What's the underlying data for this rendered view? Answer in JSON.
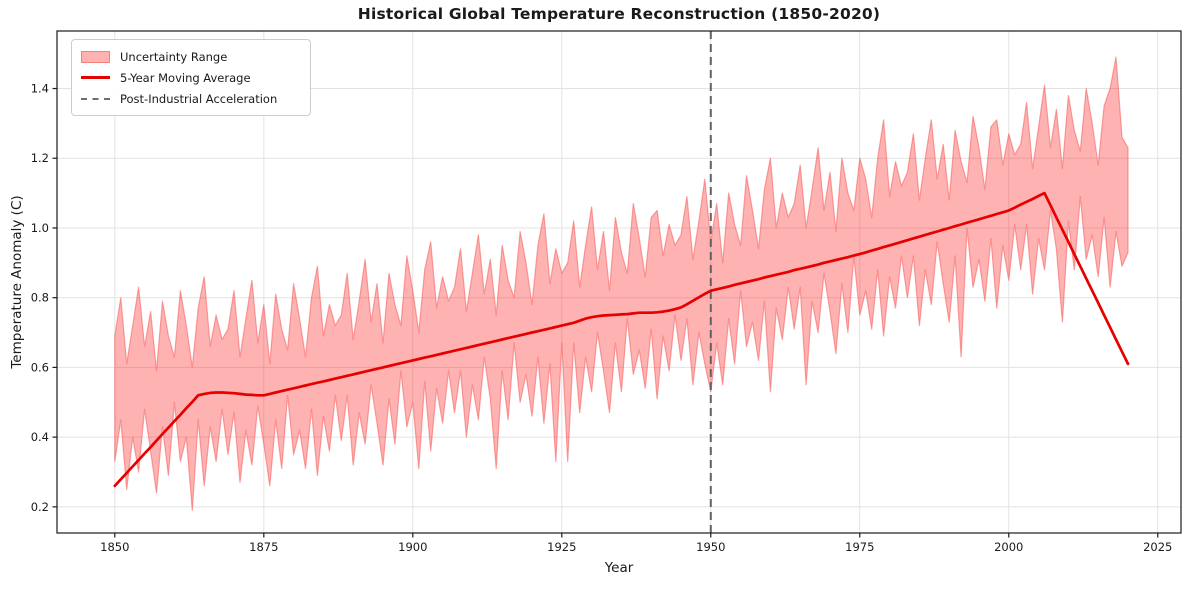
{
  "figure": {
    "title": "Historical Global Temperature Reconstruction (1850-2020)",
    "xlabel": "Year",
    "ylabel": "Temperature Anomaly (C)"
  },
  "legend": {
    "position": "upper left",
    "items": [
      {
        "label": "Uncertainty Range",
        "swatch": "pink-band-patch"
      },
      {
        "label": "5-Year Moving Average",
        "swatch": "red-line"
      },
      {
        "label": "Post-Industrial Acceleration",
        "swatch": "gray-dashed-line"
      }
    ]
  },
  "colors": {
    "band_fill": "rgba(255,0,0,0.30)",
    "band_edge": "rgba(247,100,100,0.60)",
    "avg_line": "#e60000",
    "event_line": "#616161",
    "grid": "#e3e3e3",
    "spine": "#1a1a1a",
    "tick_text": "#1a1a1a",
    "background": "#ffffff"
  },
  "chart_data": {
    "type": "line",
    "title": "Historical Global Temperature Reconstruction (1850-2020)",
    "xlabel": "Year",
    "ylabel": "Temperature Anomaly (C)",
    "grid": true,
    "legend_position": "upper left",
    "x_start": 1850,
    "x_end": 2020,
    "x_step": 1,
    "xlim": [
      1840.3,
      2028.9
    ],
    "ylim": [
      0.125,
      1.565
    ],
    "x_ticks": [
      1850,
      1875,
      1900,
      1925,
      1950,
      1975,
      2000,
      2025
    ],
    "y_ticks": [
      0.2,
      0.4,
      0.6,
      0.8,
      1.0,
      1.2,
      1.4
    ],
    "event_line": {
      "name": "Post-Industrial Acceleration",
      "x": 1950,
      "style": "dashed",
      "color": "#616161"
    },
    "series": [
      {
        "name": "Uncertainty Range",
        "type": "band",
        "upper": [
          0.69,
          0.8,
          0.61,
          0.72,
          0.83,
          0.66,
          0.76,
          0.59,
          0.79,
          0.69,
          0.63,
          0.82,
          0.72,
          0.6,
          0.77,
          0.86,
          0.66,
          0.75,
          0.68,
          0.71,
          0.82,
          0.63,
          0.74,
          0.85,
          0.67,
          0.78,
          0.61,
          0.81,
          0.71,
          0.65,
          0.84,
          0.74,
          0.63,
          0.8,
          0.89,
          0.69,
          0.78,
          0.72,
          0.75,
          0.87,
          0.68,
          0.79,
          0.91,
          0.73,
          0.84,
          0.67,
          0.87,
          0.78,
          0.72,
          0.92,
          0.82,
          0.7,
          0.88,
          0.96,
          0.77,
          0.86,
          0.79,
          0.83,
          0.94,
          0.76,
          0.87,
          0.98,
          0.81,
          0.91,
          0.75,
          0.95,
          0.85,
          0.8,
          0.99,
          0.9,
          0.78,
          0.95,
          1.04,
          0.84,
          0.94,
          0.87,
          0.9,
          1.02,
          0.83,
          0.95,
          1.06,
          0.88,
          0.99,
          0.82,
          1.03,
          0.93,
          0.87,
          1.07,
          0.97,
          0.86,
          1.03,
          1.05,
          0.92,
          1.01,
          0.95,
          0.98,
          1.09,
          0.91,
          1.02,
          1.14,
          0.96,
          1.07,
          0.9,
          1.1,
          1.01,
          0.95,
          1.15,
          1.05,
          0.94,
          1.11,
          1.2,
          1.0,
          1.1,
          1.03,
          1.07,
          1.18,
          1.0,
          1.11,
          1.23,
          1.05,
          1.16,
          0.99,
          1.2,
          1.1,
          1.05,
          1.2,
          1.14,
          1.03,
          1.2,
          1.31,
          1.09,
          1.19,
          1.12,
          1.16,
          1.27,
          1.08,
          1.2,
          1.31,
          1.14,
          1.24,
          1.08,
          1.28,
          1.19,
          1.13,
          1.32,
          1.23,
          1.11,
          1.29,
          1.31,
          1.18,
          1.27,
          1.21,
          1.24,
          1.36,
          1.17,
          1.29,
          1.41,
          1.23,
          1.34,
          1.17,
          1.38,
          1.28,
          1.22,
          1.4,
          1.3,
          1.18,
          1.35,
          1.4,
          1.49,
          1.26,
          1.23
        ],
        "lower": [
          0.33,
          0.45,
          0.25,
          0.4,
          0.3,
          0.48,
          0.36,
          0.24,
          0.43,
          0.29,
          0.5,
          0.33,
          0.4,
          0.19,
          0.45,
          0.26,
          0.43,
          0.33,
          0.48,
          0.35,
          0.47,
          0.27,
          0.42,
          0.32,
          0.49,
          0.38,
          0.26,
          0.45,
          0.31,
          0.52,
          0.35,
          0.42,
          0.31,
          0.48,
          0.29,
          0.46,
          0.36,
          0.52,
          0.39,
          0.52,
          0.32,
          0.47,
          0.38,
          0.55,
          0.44,
          0.32,
          0.51,
          0.38,
          0.59,
          0.43,
          0.5,
          0.31,
          0.56,
          0.36,
          0.54,
          0.44,
          0.59,
          0.47,
          0.59,
          0.4,
          0.55,
          0.45,
          0.63,
          0.51,
          0.31,
          0.59,
          0.45,
          0.67,
          0.5,
          0.58,
          0.46,
          0.63,
          0.44,
          0.61,
          0.33,
          0.67,
          0.33,
          0.67,
          0.47,
          0.63,
          0.53,
          0.7,
          0.59,
          0.47,
          0.67,
          0.53,
          0.74,
          0.58,
          0.65,
          0.54,
          0.71,
          0.51,
          0.69,
          0.59,
          0.75,
          0.62,
          0.74,
          0.55,
          0.7,
          0.61,
          0.53,
          0.67,
          0.55,
          0.74,
          0.61,
          0.82,
          0.66,
          0.73,
          0.62,
          0.79,
          0.53,
          0.77,
          0.68,
          0.83,
          0.71,
          0.83,
          0.55,
          0.79,
          0.7,
          0.87,
          0.76,
          0.64,
          0.84,
          0.7,
          0.92,
          0.75,
          0.82,
          0.71,
          0.88,
          0.69,
          0.86,
          0.77,
          0.92,
          0.8,
          0.92,
          0.72,
          0.88,
          0.78,
          0.96,
          0.84,
          0.73,
          0.92,
          0.63,
          1.0,
          0.83,
          0.91,
          0.79,
          0.97,
          0.77,
          0.95,
          0.85,
          1.01,
          0.88,
          1.01,
          0.81,
          0.97,
          0.88,
          1.05,
          0.94,
          0.73,
          1.02,
          0.88,
          1.09,
          0.91,
          0.98,
          0.86,
          1.03,
          0.83,
          0.99,
          0.89,
          0.93
        ]
      },
      {
        "name": "5-Year Moving Average",
        "type": "line",
        "values": [
          0.26,
          0.279,
          0.297,
          0.316,
          0.334,
          0.353,
          0.371,
          0.39,
          0.409,
          0.427,
          0.446,
          0.464,
          0.483,
          0.501,
          0.52,
          0.524,
          0.527,
          0.528,
          0.528,
          0.527,
          0.526,
          0.524,
          0.522,
          0.521,
          0.52,
          0.52,
          0.524,
          0.528,
          0.532,
          0.536,
          0.54,
          0.544,
          0.548,
          0.552,
          0.556,
          0.56,
          0.564,
          0.568,
          0.572,
          0.576,
          0.58,
          0.584,
          0.588,
          0.592,
          0.596,
          0.6,
          0.604,
          0.608,
          0.612,
          0.616,
          0.62,
          0.624,
          0.628,
          0.632,
          0.636,
          0.64,
          0.644,
          0.648,
          0.652,
          0.656,
          0.66,
          0.664,
          0.668,
          0.672,
          0.676,
          0.68,
          0.684,
          0.688,
          0.692,
          0.696,
          0.7,
          0.704,
          0.708,
          0.712,
          0.716,
          0.72,
          0.724,
          0.728,
          0.734,
          0.74,
          0.744,
          0.747,
          0.749,
          0.75,
          0.751,
          0.752,
          0.753,
          0.755,
          0.757,
          0.757,
          0.757,
          0.758,
          0.76,
          0.763,
          0.767,
          0.772,
          0.781,
          0.791,
          0.801,
          0.811,
          0.82,
          0.824,
          0.828,
          0.832,
          0.837,
          0.841,
          0.845,
          0.849,
          0.853,
          0.858,
          0.862,
          0.866,
          0.87,
          0.874,
          0.879,
          0.883,
          0.887,
          0.891,
          0.895,
          0.9,
          0.904,
          0.908,
          0.912,
          0.916,
          0.921,
          0.925,
          0.93,
          0.935,
          0.94,
          0.945,
          0.95,
          0.955,
          0.96,
          0.965,
          0.97,
          0.975,
          0.98,
          0.985,
          0.99,
          0.995,
          1.0,
          1.005,
          1.01,
          1.015,
          1.02,
          1.025,
          1.03,
          1.035,
          1.04,
          1.045,
          1.05,
          1.058,
          1.067,
          1.075,
          1.083,
          1.092,
          1.1,
          1.065,
          1.03,
          0.995,
          0.96,
          0.925,
          0.89,
          0.855,
          0.82,
          0.785,
          0.75,
          0.715,
          0.68,
          0.645,
          0.61
        ]
      }
    ]
  }
}
